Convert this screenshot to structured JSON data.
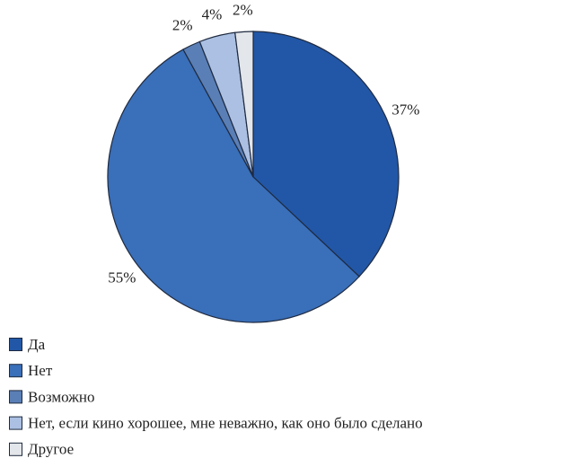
{
  "chart_data": {
    "type": "pie",
    "categories": [
      "Да",
      "Нет",
      "Возможно",
      "Нет, если кино хорошее, мне неважно, как оно было сделано",
      "Другое"
    ],
    "values": [
      37,
      55,
      2,
      4,
      2
    ],
    "value_labels": [
      "37%",
      "55%",
      "2%",
      "4%",
      "2%"
    ],
    "colors": [
      "#2257a7",
      "#3a6fb9",
      "#5a7fb6",
      "#abc0e2",
      "#e3e6ea"
    ],
    "legend": "bottom-left"
  }
}
